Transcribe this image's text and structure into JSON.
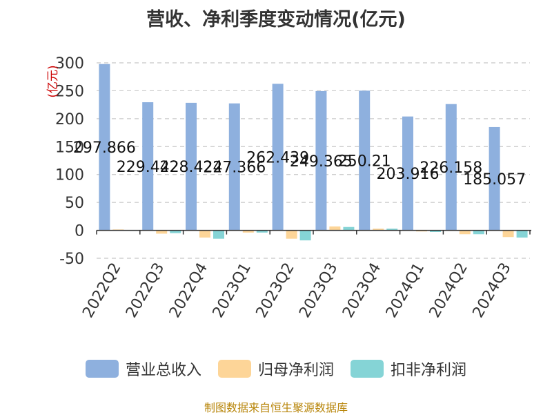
{
  "chart_data": {
    "type": "bar",
    "title": "营收、净利季度变动情况(亿元)",
    "ylabel": "(亿元)",
    "xlabel": "",
    "ylim": [
      -50,
      300
    ],
    "yticks": [
      -50,
      0,
      50,
      100,
      150,
      200,
      250,
      300
    ],
    "grid": true,
    "legend_position": "bottom",
    "categories": [
      "2022Q2",
      "2022Q3",
      "2022Q4",
      "2023Q1",
      "2023Q2",
      "2023Q3",
      "2023Q4",
      "2024Q1",
      "2024Q2",
      "2024Q3"
    ],
    "series": [
      {
        "name": "营业总收入",
        "color": "#8eb0de",
        "values": [
          297.866,
          229.442,
          228.424,
          227.366,
          262.439,
          249.365,
          250.21,
          203.916,
          226.158,
          185.057
        ],
        "data_labels": [
          "297.866",
          "229.442",
          "228.424",
          "227.366",
          "262.439",
          "249.365",
          "250.21",
          "203.916",
          "226.158",
          "185.057"
        ]
      },
      {
        "name": "归母净利润",
        "color": "#fdd598",
        "values": [
          1.5,
          -6,
          -13,
          -4,
          -15,
          7,
          3,
          -2,
          -7,
          -12
        ]
      },
      {
        "name": "扣非净利润",
        "color": "#85d4d6",
        "values": [
          0.5,
          -5,
          -15,
          -4,
          -18,
          6,
          3,
          -3,
          -7,
          -13
        ]
      }
    ]
  },
  "source_note": "制图数据来自恒生聚源数据库"
}
